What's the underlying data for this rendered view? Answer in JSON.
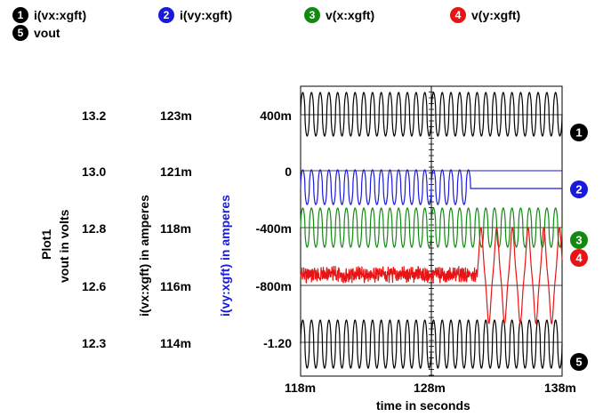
{
  "legend": [
    {
      "num": "1",
      "label": "i(vx:xgft)",
      "color": "#000000"
    },
    {
      "num": "2",
      "label": "i(vy:xgft)",
      "color": "#1a1adc"
    },
    {
      "num": "3",
      "label": "v(x:xgft)",
      "color": "#128a12"
    },
    {
      "num": "4",
      "label": "v(y:xgft)",
      "color": "#e61414"
    },
    {
      "num": "5",
      "label": "vout",
      "color": "#000000"
    }
  ],
  "chart_data": {
    "type": "line",
    "plot_name": "Plot1",
    "xlabel": "time in seconds",
    "xlim": [
      118,
      138
    ],
    "x_unit": "ms",
    "x_ticks": [
      "118m",
      "128m",
      "138m"
    ],
    "axes": [
      {
        "label": "vout in volts",
        "ticks": [
          "13.2",
          "13.0",
          "12.8",
          "12.6",
          "12.3"
        ],
        "color": "#000000"
      },
      {
        "label": "i(vx:xgft) in amperes",
        "ticks": [
          "123m",
          "121m",
          "118m",
          "116m",
          "114m"
        ],
        "color": "#000000"
      },
      {
        "label": "i(vy:xgft) in amperes",
        "ticks": [],
        "color": "#1a1adc"
      },
      {
        "label": "",
        "ticks": [
          "400m",
          "0",
          "-400m",
          "-800m",
          "-1.20"
        ],
        "color": "#000000"
      }
    ],
    "grid": true,
    "series": [
      {
        "name": "i(vx:xgft)",
        "marker": "1",
        "color": "#000000",
        "cycles": 30,
        "ylim": [
          114,
          123
        ],
        "y_unit": "mA",
        "note_range": [
          122.0,
          123.8
        ]
      },
      {
        "name": "i(vy:xgft)",
        "marker": "2",
        "color": "#1a1adc",
        "cycles": 30,
        "oscillation_ends_ms": 131.0,
        "flat_value_after": -0.1,
        "range": [
          -0.15,
          0.05
        ]
      },
      {
        "name": "v(x:xgft)",
        "marker": "3",
        "color": "#128a12",
        "cycles": 30,
        "range": [
          -0.53,
          -0.22
        ]
      },
      {
        "name": "v(y:xgft)",
        "marker": "4",
        "color": "#e61414",
        "noisy_level": -0.75,
        "large_oscillation_start_ms": 131.5,
        "range": [
          -1.0,
          -0.3
        ]
      },
      {
        "name": "vout",
        "marker": "5",
        "color": "#000000",
        "cycles": 30,
        "ylim": [
          12.3,
          13.3
        ],
        "range": [
          12.3,
          12.45
        ]
      }
    ]
  }
}
